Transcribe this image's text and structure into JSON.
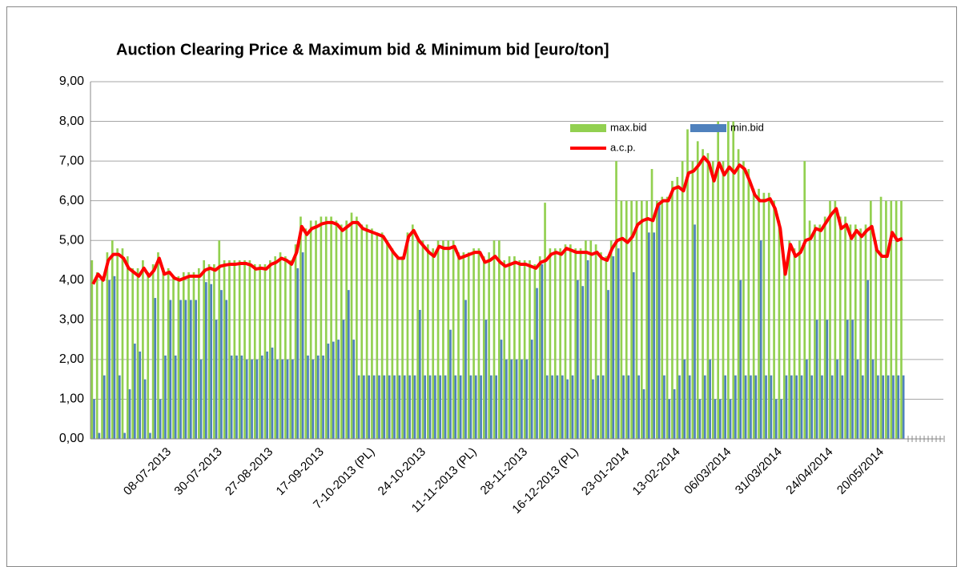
{
  "chart_data": {
    "type": "bar",
    "title": "Auction Clearing Price & Maximum bid  & Minimum bid [euro/ton]",
    "categories": [
      null,
      null,
      null,
      null,
      null,
      null,
      null,
      null,
      null,
      null,
      null,
      null,
      null,
      null,
      null,
      "08-07-2013",
      null,
      null,
      null,
      null,
      null,
      null,
      null,
      null,
      null,
      "30-07-2013",
      null,
      null,
      null,
      null,
      null,
      null,
      null,
      null,
      null,
      "27-08-2013",
      null,
      null,
      null,
      null,
      null,
      null,
      null,
      null,
      null,
      "17-09-2013",
      null,
      null,
      null,
      null,
      null,
      null,
      null,
      null,
      null,
      "7-10-2013 (PL)",
      null,
      null,
      null,
      null,
      null,
      null,
      null,
      null,
      null,
      "24-10-2013",
      null,
      null,
      null,
      null,
      null,
      null,
      null,
      null,
      null,
      "11-11-2013 (PL)",
      null,
      null,
      null,
      null,
      null,
      null,
      null,
      null,
      null,
      "28-11-2013",
      null,
      null,
      null,
      null,
      null,
      null,
      null,
      null,
      null,
      "16-12-2013 (PL)",
      null,
      null,
      null,
      null,
      null,
      null,
      null,
      null,
      null,
      "23-01-2014",
      null,
      null,
      null,
      null,
      null,
      null,
      null,
      null,
      null,
      "13-02-2014",
      null,
      null,
      null,
      null,
      null,
      null,
      null,
      null,
      null,
      "06/03/2014",
      null,
      null,
      null,
      null,
      null,
      null,
      null,
      null,
      null,
      "31/03/2014",
      null,
      null,
      null,
      null,
      null,
      null,
      null,
      null,
      null,
      "24/04/2014",
      null,
      null,
      null,
      null,
      null,
      null,
      null,
      null,
      null,
      "20/05/2014",
      null,
      null,
      null,
      null
    ],
    "series": [
      {
        "name": "max.bid",
        "color": "#92d050",
        "type": "bar",
        "values": [
          4.5,
          4.2,
          4.0,
          4.7,
          5.0,
          4.8,
          4.8,
          4.6,
          4.3,
          4.3,
          4.5,
          4.2,
          4.4,
          4.7,
          4.3,
          4.3,
          4.1,
          4.1,
          4.2,
          4.2,
          4.2,
          4.3,
          4.5,
          4.4,
          4.4,
          5.0,
          4.5,
          4.5,
          4.5,
          4.5,
          4.5,
          4.5,
          4.4,
          4.4,
          4.4,
          4.5,
          4.6,
          4.7,
          4.6,
          4.5,
          4.9,
          5.6,
          5.3,
          5.5,
          5.5,
          5.6,
          5.6,
          5.6,
          5.5,
          5.4,
          5.5,
          5.7,
          5.6,
          5.4,
          5.4,
          5.3,
          5.2,
          5.2,
          5.0,
          4.8,
          4.6,
          4.6,
          5.2,
          5.4,
          5.1,
          5.0,
          4.9,
          4.8,
          5.0,
          5.0,
          5.0,
          5.0,
          4.7,
          4.7,
          4.7,
          4.8,
          4.8,
          4.6,
          4.7,
          5.0,
          5.0,
          4.5,
          4.6,
          4.6,
          4.5,
          4.5,
          4.5,
          4.4,
          4.6,
          5.95,
          4.8,
          4.8,
          4.8,
          4.9,
          4.9,
          4.8,
          4.8,
          5.0,
          5.0,
          4.9,
          4.7,
          4.6,
          5.0,
          7.0,
          6.0,
          6.0,
          6.0,
          6.0,
          6.0,
          6.0,
          6.8,
          6.0,
          6.1,
          6.1,
          6.5,
          6.6,
          7.0,
          7.8,
          7.0,
          7.5,
          7.3,
          7.2,
          7.0,
          8.0,
          7.0,
          8.0,
          8.0,
          7.3,
          7.0,
          6.8,
          6.3,
          6.3,
          6.2,
          6.2,
          6.0,
          5.5,
          4.5,
          5.0,
          4.8,
          5.0,
          7.0,
          5.5,
          5.4,
          5.4,
          5.6,
          6.0,
          6.0,
          5.6,
          5.6,
          5.4,
          5.4,
          5.3,
          5.4,
          6.0,
          5.0,
          6.1,
          6.0,
          6.0,
          6.0,
          6.0
        ]
      },
      {
        "name": "min.bid",
        "color": "#4f81bd",
        "type": "bar",
        "values": [
          1.0,
          0.15,
          1.6,
          4.0,
          4.1,
          1.6,
          0.15,
          1.25,
          2.4,
          2.2,
          1.5,
          0.15,
          3.55,
          1.0,
          2.1,
          3.5,
          2.1,
          3.5,
          3.5,
          3.5,
          3.5,
          2.0,
          3.95,
          3.9,
          3.0,
          3.75,
          3.5,
          2.1,
          2.1,
          2.1,
          2.0,
          2.0,
          2.0,
          2.1,
          2.2,
          2.3,
          2.0,
          2.0,
          2.0,
          2.0,
          4.3,
          4.7,
          2.1,
          2.0,
          2.1,
          2.1,
          2.4,
          2.45,
          2.5,
          3.0,
          3.75,
          2.5,
          1.6,
          1.6,
          1.6,
          1.6,
          1.6,
          1.6,
          1.6,
          1.6,
          1.6,
          1.6,
          1.6,
          1.6,
          3.25,
          1.6,
          1.6,
          1.6,
          1.6,
          1.6,
          2.75,
          1.6,
          1.6,
          3.5,
          1.6,
          1.6,
          1.6,
          3.0,
          1.6,
          1.6,
          2.5,
          2.0,
          2.0,
          2.0,
          2.0,
          2.0,
          2.5,
          3.8,
          4.4,
          1.6,
          1.6,
          1.6,
          1.6,
          1.5,
          1.6,
          4.0,
          3.85,
          4.5,
          1.5,
          1.6,
          1.6,
          3.75,
          4.6,
          4.8,
          1.6,
          1.6,
          4.2,
          1.6,
          1.25,
          5.2,
          5.2,
          5.9,
          1.6,
          1.0,
          1.25,
          1.6,
          2.0,
          1.6,
          5.4,
          1.0,
          1.6,
          2.0,
          1.0,
          1.0,
          1.6,
          1.0,
          1.6,
          4.0,
          1.6,
          1.6,
          1.6,
          5.0,
          1.6,
          1.6,
          1.0,
          1.0,
          1.6,
          1.6,
          1.6,
          1.6,
          2.0,
          1.6,
          3.0,
          1.6,
          3.0,
          1.6,
          2.0,
          1.6,
          3.0,
          3.0,
          2.0,
          1.6,
          4.0,
          2.0,
          1.6,
          1.6,
          1.6,
          1.6,
          1.6,
          1.6
        ]
      },
      {
        "name": "a.c.p.",
        "color": "#ff0000",
        "type": "line",
        "values": [
          3.9,
          4.15,
          4.0,
          4.5,
          4.65,
          4.65,
          4.55,
          4.3,
          4.2,
          4.1,
          4.3,
          4.1,
          4.25,
          4.55,
          4.15,
          4.2,
          4.05,
          4.0,
          4.05,
          4.1,
          4.1,
          4.1,
          4.25,
          4.3,
          4.25,
          4.35,
          4.38,
          4.4,
          4.4,
          4.42,
          4.42,
          4.38,
          4.28,
          4.3,
          4.28,
          4.4,
          4.45,
          4.55,
          4.5,
          4.4,
          4.7,
          5.35,
          5.15,
          5.3,
          5.35,
          5.42,
          5.45,
          5.45,
          5.4,
          5.25,
          5.35,
          5.45,
          5.45,
          5.3,
          5.25,
          5.2,
          5.15,
          5.1,
          4.9,
          4.7,
          4.55,
          4.55,
          5.1,
          5.25,
          5.0,
          4.85,
          4.7,
          4.6,
          4.85,
          4.8,
          4.8,
          4.85,
          4.55,
          4.6,
          4.65,
          4.7,
          4.7,
          4.45,
          4.5,
          4.6,
          4.45,
          4.35,
          4.4,
          4.45,
          4.4,
          4.4,
          4.35,
          4.3,
          4.45,
          4.5,
          4.65,
          4.7,
          4.65,
          4.8,
          4.75,
          4.7,
          4.7,
          4.7,
          4.65,
          4.7,
          4.55,
          4.5,
          4.8,
          5.0,
          5.05,
          4.95,
          5.1,
          5.4,
          5.5,
          5.55,
          5.5,
          5.9,
          6.0,
          6.0,
          6.3,
          6.35,
          6.25,
          6.7,
          6.75,
          6.9,
          7.1,
          6.95,
          6.5,
          6.95,
          6.65,
          6.85,
          6.7,
          6.9,
          6.8,
          6.5,
          6.15,
          6.0,
          6.0,
          6.05,
          5.8,
          5.3,
          4.15,
          4.9,
          4.6,
          4.7,
          5.0,
          5.05,
          5.3,
          5.25,
          5.45,
          5.65,
          5.8,
          5.3,
          5.4,
          5.05,
          5.25,
          5.1,
          5.25,
          5.35,
          4.75,
          4.6,
          4.6,
          5.2,
          5.0,
          5.05
        ]
      }
    ],
    "ylim": [
      0,
      9
    ],
    "yticks": [
      {
        "value": 0,
        "label": "0,00"
      },
      {
        "value": 1,
        "label": "1,00"
      },
      {
        "value": 2,
        "label": "2,00"
      },
      {
        "value": 3,
        "label": "3,00"
      },
      {
        "value": 4,
        "label": "4,00"
      },
      {
        "value": 5,
        "label": "5,00"
      },
      {
        "value": 6,
        "label": "6,00"
      },
      {
        "value": 7,
        "label": "7,00"
      },
      {
        "value": 8,
        "label": "8,00"
      },
      {
        "value": 9,
        "label": "9,00"
      }
    ],
    "grid": true
  }
}
